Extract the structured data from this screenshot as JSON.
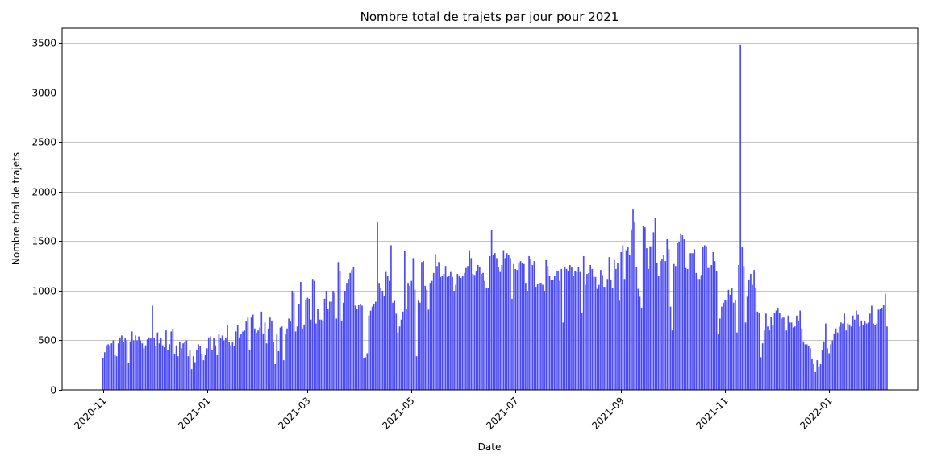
{
  "chart_data": {
    "type": "bar",
    "title": "Nombre total de trajets par jour pour 2021",
    "xlabel": "Date",
    "ylabel": "Nombre total de trajets",
    "x_start": "2020-11-01",
    "x_end": "2022-01-30",
    "xlim": [
      "2020-10-08",
      "2022-02-22"
    ],
    "ylim": [
      0,
      3650
    ],
    "x_ticks": [
      "2020-11",
      "2021-01",
      "2021-03",
      "2021-05",
      "2021-07",
      "2021-09",
      "2021-11",
      "2022-01"
    ],
    "y_ticks": [
      0,
      500,
      1000,
      1500,
      2000,
      2500,
      3000,
      3500
    ],
    "grid": "horizontal",
    "bar_color": "#4b4bf5",
    "values": [
      320,
      380,
      450,
      460,
      450,
      470,
      500,
      350,
      340,
      470,
      530,
      550,
      480,
      520,
      500,
      270,
      490,
      590,
      500,
      550,
      500,
      540,
      500,
      470,
      420,
      450,
      510,
      530,
      520,
      850,
      520,
      440,
      580,
      470,
      520,
      450,
      430,
      600,
      400,
      460,
      590,
      610,
      360,
      450,
      340,
      480,
      420,
      470,
      480,
      500,
      340,
      400,
      210,
      340,
      280,
      400,
      460,
      440,
      360,
      300,
      350,
      420,
      530,
      540,
      400,
      520,
      450,
      350,
      560,
      520,
      550,
      500,
      530,
      650,
      480,
      450,
      480,
      440,
      590,
      650,
      530,
      560,
      590,
      600,
      690,
      730,
      400,
      730,
      760,
      620,
      580,
      600,
      630,
      790,
      570,
      680,
      470,
      620,
      730,
      700,
      480,
      260,
      560,
      390,
      630,
      640,
      300,
      560,
      620,
      720,
      690,
      1000,
      980,
      590,
      640,
      870,
      1090,
      620,
      660,
      910,
      930,
      920,
      710,
      1120,
      1100,
      670,
      820,
      710,
      710,
      700,
      920,
      1000,
      820,
      890,
      890,
      1000,
      980,
      720,
      1290,
      1200,
      700,
      880,
      1000,
      1080,
      1120,
      1180,
      1210,
      1240,
      850,
      820,
      860,
      870,
      850,
      320,
      330,
      370,
      750,
      800,
      840,
      870,
      890,
      1690,
      1080,
      1030,
      1000,
      950,
      1190,
      1150,
      1100,
      1460,
      880,
      900,
      770,
      580,
      640,
      710,
      790,
      1400,
      820,
      1080,
      1050,
      1100,
      1330,
      1010,
      340,
      900,
      880,
      1290,
      1300,
      1050,
      1010,
      810,
      1080,
      1100,
      1180,
      1370,
      1250,
      1290,
      1140,
      1150,
      1170,
      1250,
      1140,
      1150,
      1190,
      1140,
      1000,
      1060,
      1170,
      1150,
      1130,
      1150,
      1180,
      1230,
      1250,
      1410,
      1330,
      1170,
      1160,
      1200,
      1260,
      1240,
      1170,
      1180,
      1100,
      1030,
      1030,
      1350,
      1610,
      1360,
      1380,
      1330,
      1240,
      1190,
      1260,
      1410,
      1330,
      1380,
      1360,
      1330,
      920,
      1270,
      1220,
      1210,
      1280,
      1300,
      1280,
      1270,
      1080,
      1000,
      1350,
      1320,
      1260,
      1300,
      1040,
      1070,
      1080,
      1080,
      1060,
      1000,
      1310,
      1250,
      1150,
      1110,
      1110,
      1150,
      1200,
      1200,
      1100,
      1220,
      680,
      1240,
      1220,
      1200,
      1260,
      1240,
      1150,
      1200,
      1190,
      1240,
      1190,
      780,
      1350,
      1060,
      1170,
      1180,
      1260,
      1220,
      1140,
      1140,
      1020,
      1060,
      1210,
      1160,
      1040,
      1040,
      1120,
      1340,
      1110,
      1030,
      1310,
      1220,
      1280,
      900,
      1390,
      1460,
      1120,
      1410,
      1440,
      1360,
      1620,
      1820,
      1690,
      1240,
      1020,
      940,
      830,
      1650,
      1640,
      1430,
      1220,
      1450,
      1450,
      1590,
      1740,
      1280,
      1150,
      1300,
      1320,
      1360,
      1300,
      1520,
      1420,
      840,
      600,
      1270,
      1250,
      1480,
      1490,
      1580,
      1560,
      1520,
      1230,
      1220,
      1380,
      1380,
      1380,
      1420,
      1180,
      1120,
      1120,
      1160,
      1440,
      1460,
      1450,
      1230,
      1230,
      1260,
      1390,
      1300,
      1200,
      560,
      720,
      840,
      880,
      910,
      900,
      1010,
      960,
      1030,
      880,
      910,
      580,
      1260,
      3480,
      1440,
      1250,
      680,
      940,
      1110,
      1170,
      1060,
      1210,
      1030,
      790,
      780,
      330,
      470,
      600,
      770,
      640,
      600,
      740,
      650,
      780,
      800,
      830,
      780,
      720,
      730,
      730,
      600,
      750,
      680,
      680,
      630,
      640,
      750,
      700,
      800,
      620,
      490,
      460,
      460,
      440,
      420,
      310,
      260,
      180,
      300,
      230,
      260,
      400,
      490,
      670,
      420,
      370,
      460,
      500,
      570,
      620,
      580,
      640,
      680,
      670,
      770,
      600,
      670,
      660,
      640,
      750,
      710,
      800,
      760,
      640,
      700,
      650,
      690,
      670,
      680,
      770,
      850,
      670,
      650,
      670,
      810,
      820,
      830,
      860,
      970,
      640
    ]
  }
}
